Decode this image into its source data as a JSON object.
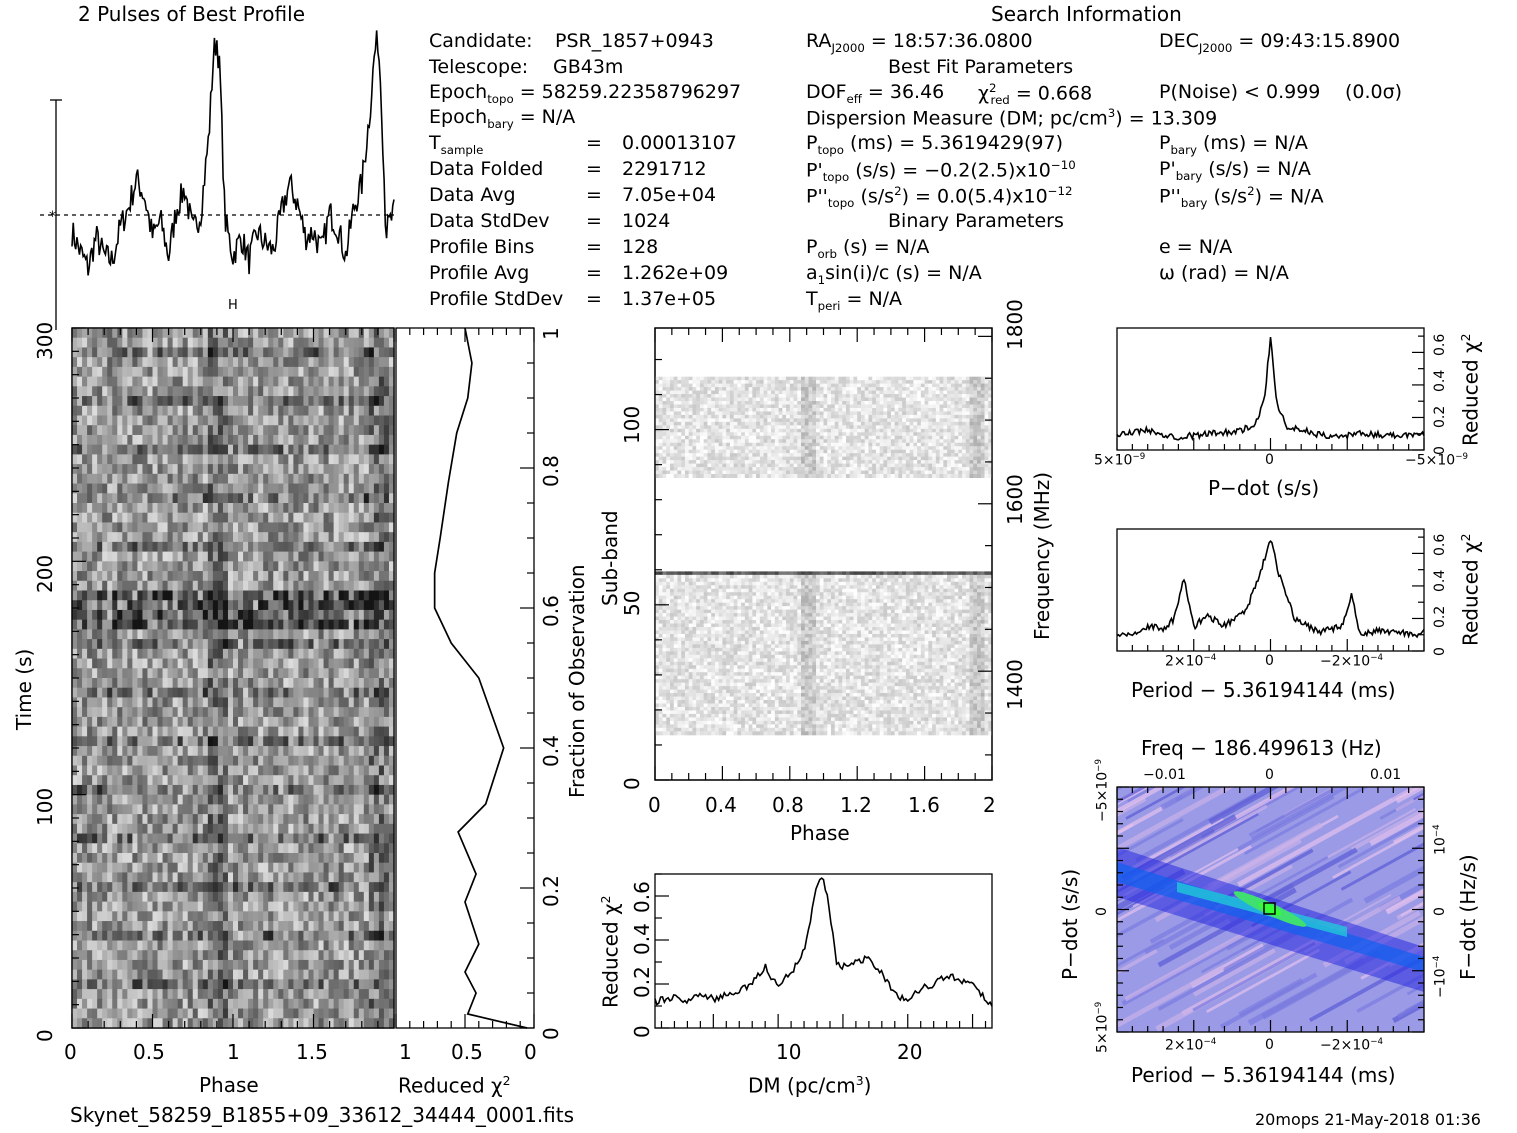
{
  "header": {
    "profile_title": "2 Pulses of Best Profile",
    "search_title": "Search Information",
    "best_fit_title": "Best Fit Parameters",
    "binary_title": "Binary Parameters",
    "filename": "Skynet_58259_B1855+09_33612_34444_0001.fits",
    "footer_stamp": "20mops 21-May-2018 01:36"
  },
  "candidate_info": {
    "candidate_label": "Candidate:",
    "candidate_value": "PSR_1857+0943",
    "telescope_label": "Telescope:",
    "telescope_value": "GB43m",
    "epoch_topo_sub": "topo",
    "epoch_topo_value": "= 58259.22358796297",
    "epoch_bary_sub": "bary",
    "epoch_bary_value": "= N/A",
    "tsample_sub": "sample",
    "tsample_value": "0.00013107",
    "data_folded_label": "Data Folded",
    "data_folded_value": "2291712",
    "data_avg_label": "Data Avg",
    "data_avg_value": "7.05e+04",
    "data_stddev_label": "Data StdDev",
    "data_stddev_value": "1024",
    "profile_bins_label": "Profile Bins",
    "profile_bins_value": "128",
    "profile_avg_label": "Profile Avg",
    "profile_avg_value": "1.262e+09",
    "profile_stddev_label": "Profile StdDev",
    "profile_stddev_value": "1.37e+05",
    "equals": "="
  },
  "search_info": {
    "ra_value": "= 18:57:36.0800",
    "dec_value": "= 09:43:15.8900",
    "dof_value": "= 36.46",
    "chi2_value": "= 0.668",
    "pnoise_text": "P(Noise) < 0.999",
    "sigma_text": "(0.0σ)",
    "dm_text_a": "Dispersion Measure (DM; pc/cm",
    "dm_text_b": ") = 13.309",
    "ptopo_value": "(ms) =  5.3619429(97)",
    "pbary_value": "(ms) = N/A",
    "pdtopo_value": "(s/s) = −0.2(2.5)x10",
    "pdtopo_exp": "−10",
    "pdbary_value": "(s/s) = N/A",
    "pddtopo_value_a": "(s/s",
    "pddtopo_value_b": ") = 0.0(5.4)x10",
    "pddtopo_exp": "−12",
    "pddbary_value_a": "(s/s",
    "pddbary_value_b": ") = N/A",
    "porb_value": "(s) = N/A",
    "e_value": "e = N/A",
    "a1sini_value": "sin(i)/c (s) = N/A",
    "omega_value": "ω (rad) = N/A",
    "tperi_value": "= N/A"
  },
  "axes": {
    "time_label": "Time (s)",
    "phase_label": "Phase",
    "reduced_chi2_label": "Reduced χ",
    "fraction_label": "Fraction of Observation",
    "subband_label": "Sub-band",
    "frequency_label": "Frequency (MHz)",
    "dm_label_a": "DM (pc/cm",
    "dm_label_b": ")",
    "pdot_label": "P−dot (s/s)",
    "period_label": "Period − 5.36194144 (ms)",
    "freq_label": "Freq − 186.499613 (Hz)",
    "fdot_label": "F−dot (Hz/s)"
  },
  "ticks": {
    "time": [
      "0",
      "100",
      "200",
      "300"
    ],
    "phase_left": [
      "0",
      "0.5",
      "1",
      "1.5"
    ],
    "redchi_left": [
      "1",
      "0.5",
      "0"
    ],
    "fraction": [
      "0",
      "0.2",
      "0.4",
      "0.6",
      "0.8",
      "1"
    ],
    "subband": [
      "0",
      "50",
      "100"
    ],
    "freq": [
      "1400",
      "1600",
      "1800"
    ],
    "phase_mid": [
      "0",
      "0.4",
      "0.8",
      "1.2",
      "1.6",
      "2"
    ],
    "dm_y": [
      "0",
      "0.2",
      "0.4",
      "0.6"
    ],
    "dm_x": [
      "10",
      "20"
    ],
    "right_y": [
      "0",
      "0.2",
      "0.4",
      "0.6"
    ],
    "pdot_x": [
      "5×10",
      "0",
      "−5×10"
    ],
    "pdot_x_exp": "−9",
    "period_x": [
      "2×10",
      "0",
      "−2×10"
    ],
    "period_x_exp": "−4",
    "freq_top": [
      "−0.01",
      "0",
      "0.01"
    ],
    "pp_y": [
      "−5×10",
      "0",
      "5×10"
    ],
    "pp_y_exp": "−9",
    "fdot_y": [
      "10",
      "0",
      "−10"
    ],
    "fdot_y_exp": "−4"
  },
  "colors": {
    "line": "#000000",
    "grey_dark": "#1a1a1a",
    "pp_base": "#9a9ae6",
    "pp_peak": "#33ff33"
  },
  "chart_data": [
    {
      "type": "line",
      "title": "2 Pulses of Best Profile",
      "note": "pulse profile (two pulses)",
      "x": [
        0,
        0.05,
        0.1,
        0.15,
        0.2,
        0.25,
        0.3,
        0.35,
        0.4,
        0.45,
        0.5,
        0.55,
        0.6,
        0.65,
        0.7,
        0.75,
        0.8,
        0.85,
        0.88,
        0.9,
        0.92,
        0.95,
        1.0,
        1.05,
        1.1,
        1.15,
        1.2,
        1.25,
        1.3,
        1.35,
        1.4,
        1.45,
        1.5,
        1.55,
        1.6,
        1.65,
        1.7,
        1.75,
        1.8,
        1.85,
        1.88,
        1.9,
        1.92,
        1.95,
        2.0
      ],
      "values": [
        0.2,
        0.12,
        0.05,
        0.18,
        0.1,
        0.08,
        0.22,
        0.3,
        0.42,
        0.35,
        0.18,
        0.25,
        0.1,
        0.3,
        0.38,
        0.2,
        0.28,
        0.6,
        0.95,
        1.0,
        0.85,
        0.25,
        0.1,
        0.18,
        0.08,
        0.2,
        0.15,
        0.12,
        0.28,
        0.4,
        0.32,
        0.18,
        0.2,
        0.12,
        0.28,
        0.22,
        0.1,
        0.3,
        0.4,
        0.7,
        0.95,
        1.0,
        0.8,
        0.2,
        0.28
      ],
      "ylim": [
        0,
        1
      ]
    },
    {
      "type": "line",
      "xlabel": "Reduced χ2",
      "ylabel": "Fraction of Observation",
      "x": [
        0.05,
        0.48,
        0.42,
        0.5,
        0.4,
        0.5,
        0.42,
        0.55,
        0.35,
        0.22,
        0.4,
        0.6,
        0.72,
        0.72,
        0.68,
        0.62,
        0.56,
        0.48,
        0.45,
        0.5
      ],
      "y": [
        0,
        0.02,
        0.05,
        0.08,
        0.12,
        0.18,
        0.22,
        0.28,
        0.32,
        0.4,
        0.5,
        0.55,
        0.6,
        0.65,
        0.7,
        0.78,
        0.85,
        0.9,
        0.95,
        1.0
      ],
      "xlim": [
        1,
        0
      ],
      "ylim": [
        0,
        1
      ]
    },
    {
      "type": "line",
      "xlabel": "DM (pc/cm3)",
      "ylabel": "Reduced χ2",
      "x": [
        0.5,
        2,
        3,
        4,
        5,
        6,
        7,
        8,
        9,
        9.5,
        10,
        11,
        12,
        12.5,
        13,
        13.4,
        13.8,
        14.5,
        15,
        16,
        17,
        18,
        19,
        20,
        21,
        22,
        23,
        24,
        25,
        26.5
      ],
      "values": [
        0.12,
        0.14,
        0.12,
        0.16,
        0.13,
        0.15,
        0.17,
        0.2,
        0.28,
        0.22,
        0.2,
        0.25,
        0.35,
        0.5,
        0.65,
        0.68,
        0.6,
        0.3,
        0.28,
        0.3,
        0.32,
        0.25,
        0.15,
        0.13,
        0.18,
        0.2,
        0.24,
        0.22,
        0.2,
        0.1
      ],
      "xlim": [
        0.5,
        26.5
      ],
      "ylim": [
        0,
        0.7
      ]
    },
    {
      "type": "line",
      "xlabel": "P−dot (s/s)",
      "ylabel": "Reduced χ2",
      "x": [
        5e-09,
        4e-09,
        3e-09,
        2e-09,
        1e-09,
        5e-10,
        2e-10,
        0,
        -2e-10,
        -5e-10,
        -1e-09,
        -2e-09,
        -3e-09,
        -4e-09,
        -5e-09
      ],
      "values": [
        0.1,
        0.12,
        0.08,
        0.1,
        0.12,
        0.15,
        0.3,
        0.7,
        0.3,
        0.15,
        0.12,
        0.08,
        0.1,
        0.09,
        0.1
      ],
      "ylim": [
        0,
        0.75
      ]
    },
    {
      "type": "line",
      "xlabel": "Period − 5.36194144 (ms)",
      "ylabel": "Reduced χ2",
      "x": [
        0.00032,
        0.00028,
        0.00025,
        0.00022,
        0.0002,
        0.00018,
        0.00016,
        0.00013,
        0.0001,
        5e-05,
        2e-05,
        0,
        -2e-05,
        -5e-05,
        -0.0001,
        -0.00015,
        -0.00017,
        -0.00018,
        -0.00019,
        -0.00022,
        -0.00026,
        -0.0003,
        -0.00032
      ],
      "values": [
        0.1,
        0.12,
        0.15,
        0.14,
        0.2,
        0.45,
        0.15,
        0.22,
        0.15,
        0.25,
        0.5,
        0.68,
        0.45,
        0.2,
        0.12,
        0.15,
        0.35,
        0.18,
        0.1,
        0.12,
        0.12,
        0.1,
        0.12
      ],
      "ylim": [
        0,
        0.75
      ]
    }
  ]
}
